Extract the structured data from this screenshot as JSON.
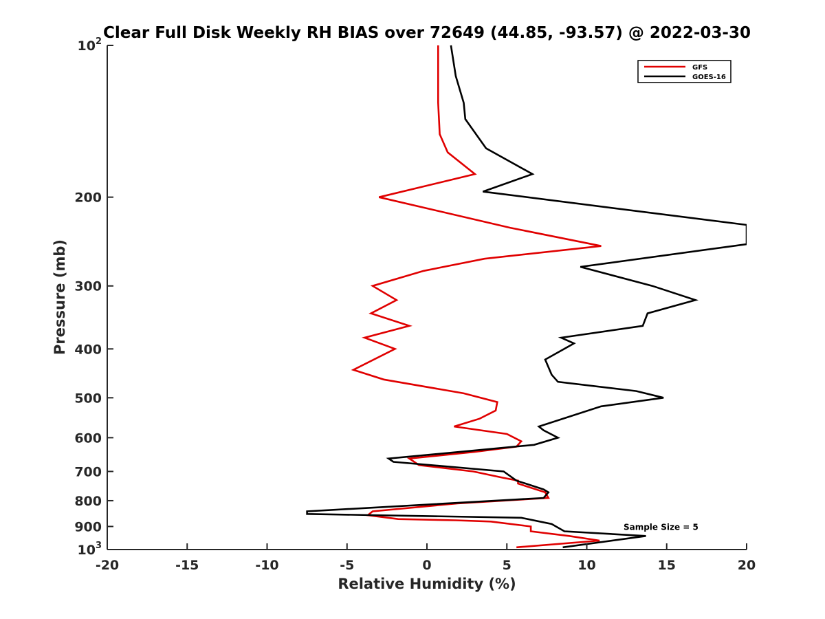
{
  "chart_data": {
    "type": "line",
    "title": "Clear Full Disk Weekly RH BIAS over 72649 (44.85, -93.57) @ 2022-03-30",
    "xlabel": "Relative Humidity (%)",
    "ylabel": "Pressure (mb)",
    "xlim": [
      -20,
      20
    ],
    "ylim": [
      100,
      1000
    ],
    "y_scale": "log",
    "y_reversed": true,
    "x_ticks": [
      -20,
      -15,
      -10,
      -5,
      0,
      5,
      10,
      15,
      20
    ],
    "y_ticks": [
      {
        "value": 100,
        "label": "10",
        "sup": "2"
      },
      {
        "value": 200,
        "label": "200"
      },
      {
        "value": 300,
        "label": "300"
      },
      {
        "value": 400,
        "label": "400"
      },
      {
        "value": 500,
        "label": "500"
      },
      {
        "value": 600,
        "label": "600"
      },
      {
        "value": 700,
        "label": "700"
      },
      {
        "value": 800,
        "label": "800"
      },
      {
        "value": 900,
        "label": "900"
      },
      {
        "value": 1000,
        "label": "10",
        "sup": "3"
      }
    ],
    "legend_position": "top-right",
    "grid": false,
    "series": [
      {
        "name": "GFS",
        "color": "#e00000",
        "x": [
          0.7,
          0.7,
          0.7,
          0.8,
          1.3,
          3.0,
          -3.0,
          5.2,
          10.9,
          3.6,
          -0.2,
          -3.4,
          -1.9,
          -3.5,
          -1.1,
          -3.9,
          -2.0,
          -4.6,
          -2.7,
          2.3,
          4.4,
          4.3,
          3.3,
          1.7,
          5.0,
          5.9,
          5.6,
          3.0,
          -1.1,
          -0.5,
          2.9,
          4.7,
          5.7,
          5.7,
          7.4,
          7.6,
          1.9,
          -3.4,
          -3.7,
          -1.8,
          1.8,
          4.0,
          6.5,
          6.5,
          8.9,
          10.8,
          5.6
        ],
        "y": [
          100,
          115,
          130,
          150,
          163,
          180,
          200,
          230,
          250,
          265,
          280,
          300,
          320,
          340,
          360,
          380,
          400,
          440,
          460,
          490,
          510,
          530,
          550,
          570,
          590,
          610,
          625,
          640,
          660,
          680,
          700,
          720,
          730,
          740,
          770,
          790,
          810,
          840,
          855,
          870,
          875,
          880,
          900,
          920,
          940,
          960,
          990
        ]
      },
      {
        "name": "GOES-16",
        "color": "#000000",
        "x": [
          1.5,
          1.8,
          2.3,
          2.4,
          3.7,
          6.6,
          3.5,
          20.0,
          20.0,
          9.6,
          14.1,
          16.8,
          13.8,
          13.5,
          8.4,
          9.2,
          7.4,
          7.8,
          8.2,
          13.1,
          14.8,
          10.9,
          7.0,
          7.3,
          8.2,
          6.7,
          -2.4,
          -2.1,
          4.8,
          5.6,
          7.3,
          7.6,
          7.3,
          -7.5,
          -7.5,
          5.9,
          7.8,
          8.6,
          13.7,
          8.5
        ],
        "y": [
          100,
          115,
          130,
          140,
          160,
          180,
          195,
          227,
          248,
          275,
          300,
          320,
          340,
          360,
          380,
          390,
          420,
          450,
          465,
          485,
          500,
          520,
          570,
          580,
          600,
          620,
          660,
          670,
          700,
          730,
          760,
          770,
          790,
          840,
          850,
          865,
          890,
          920,
          940,
          990
        ]
      }
    ],
    "annotations": [
      {
        "text": "Sample Size = 5",
        "x": 12.3,
        "y": 900
      }
    ]
  }
}
